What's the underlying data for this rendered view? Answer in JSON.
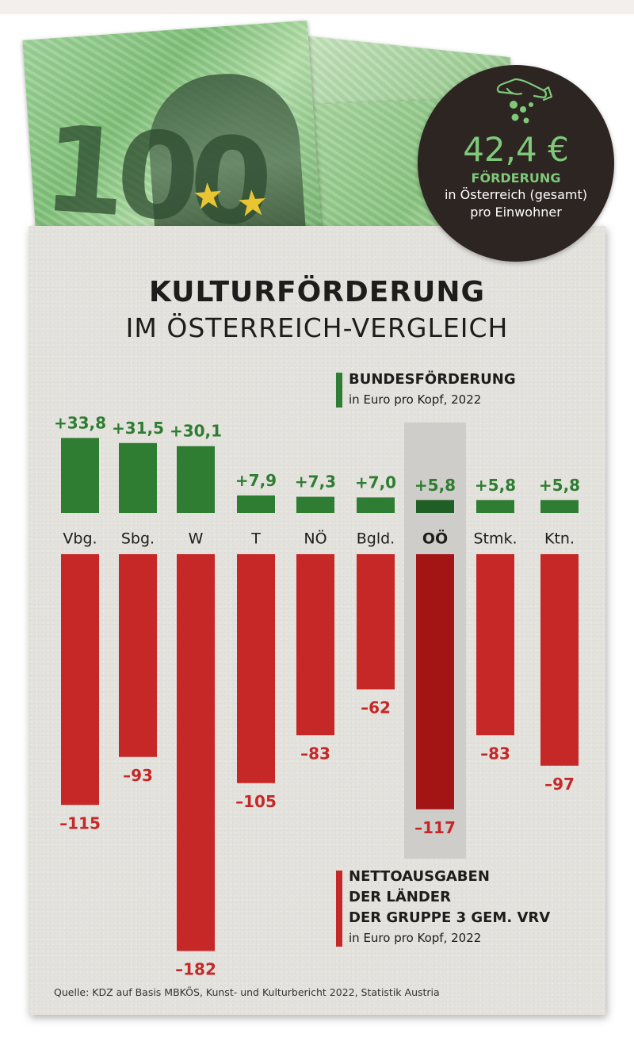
{
  "badge": {
    "amount": "42,4 €",
    "label": "FÖRDERUNG",
    "line1": "in Österreich (gesamt)",
    "line2": "pro Einwohner",
    "icon": "hand-coins-icon"
  },
  "title": "KULTURFÖRDERUNG",
  "subtitle": "IM ÖSTERREICH-VERGLEICH",
  "legend_green": {
    "title": "BUNDESFÖRDERUNG",
    "sub": "in Euro pro Kopf, 2022"
  },
  "legend_red": {
    "title1": "NETTOAUSGABEN",
    "title2": "DER LÄNDER",
    "title3": "DER GRUPPE 3 GEM. VRV",
    "sub": "in Euro pro Kopf, 2022"
  },
  "source": "Quelle: KDZ auf Basis MBKÖS, Kunst- und Kulturbericht 2022, Statistik Austria",
  "colors": {
    "green": "#2e7d32",
    "green_highlight": "#1f5e24",
    "red": "#c62828",
    "red_highlight": "#a31515",
    "highlight_bg": "#cfcdca"
  },
  "chart_data": {
    "type": "bar",
    "categories": [
      "Vbg.",
      "Sbg.",
      "W",
      "T",
      "NÖ",
      "Bgld.",
      "OÖ",
      "Stmk.",
      "Ktn."
    ],
    "highlight": "OÖ",
    "series": [
      {
        "name": "BUNDESFÖRDERUNG",
        "values": [
          33.8,
          31.5,
          30.1,
          7.9,
          7.3,
          7.0,
          5.8,
          5.8,
          5.8
        ],
        "labels": [
          "+33,8",
          "+31,5",
          "+30,1",
          "+7,9",
          "+7,3",
          "+7,0",
          "+5,8",
          "+5,8",
          "+5,8"
        ]
      },
      {
        "name": "NETTOAUSGABEN DER LÄNDER DER GRUPPE 3 GEM. VRV",
        "values": [
          -115,
          -93,
          -182,
          -105,
          -83,
          -62,
          -117,
          -83,
          -97
        ],
        "labels": [
          "–115",
          "–93",
          "–182",
          "–105",
          "–83",
          "–62",
          "–117",
          "–83",
          "–97"
        ]
      }
    ]
  }
}
